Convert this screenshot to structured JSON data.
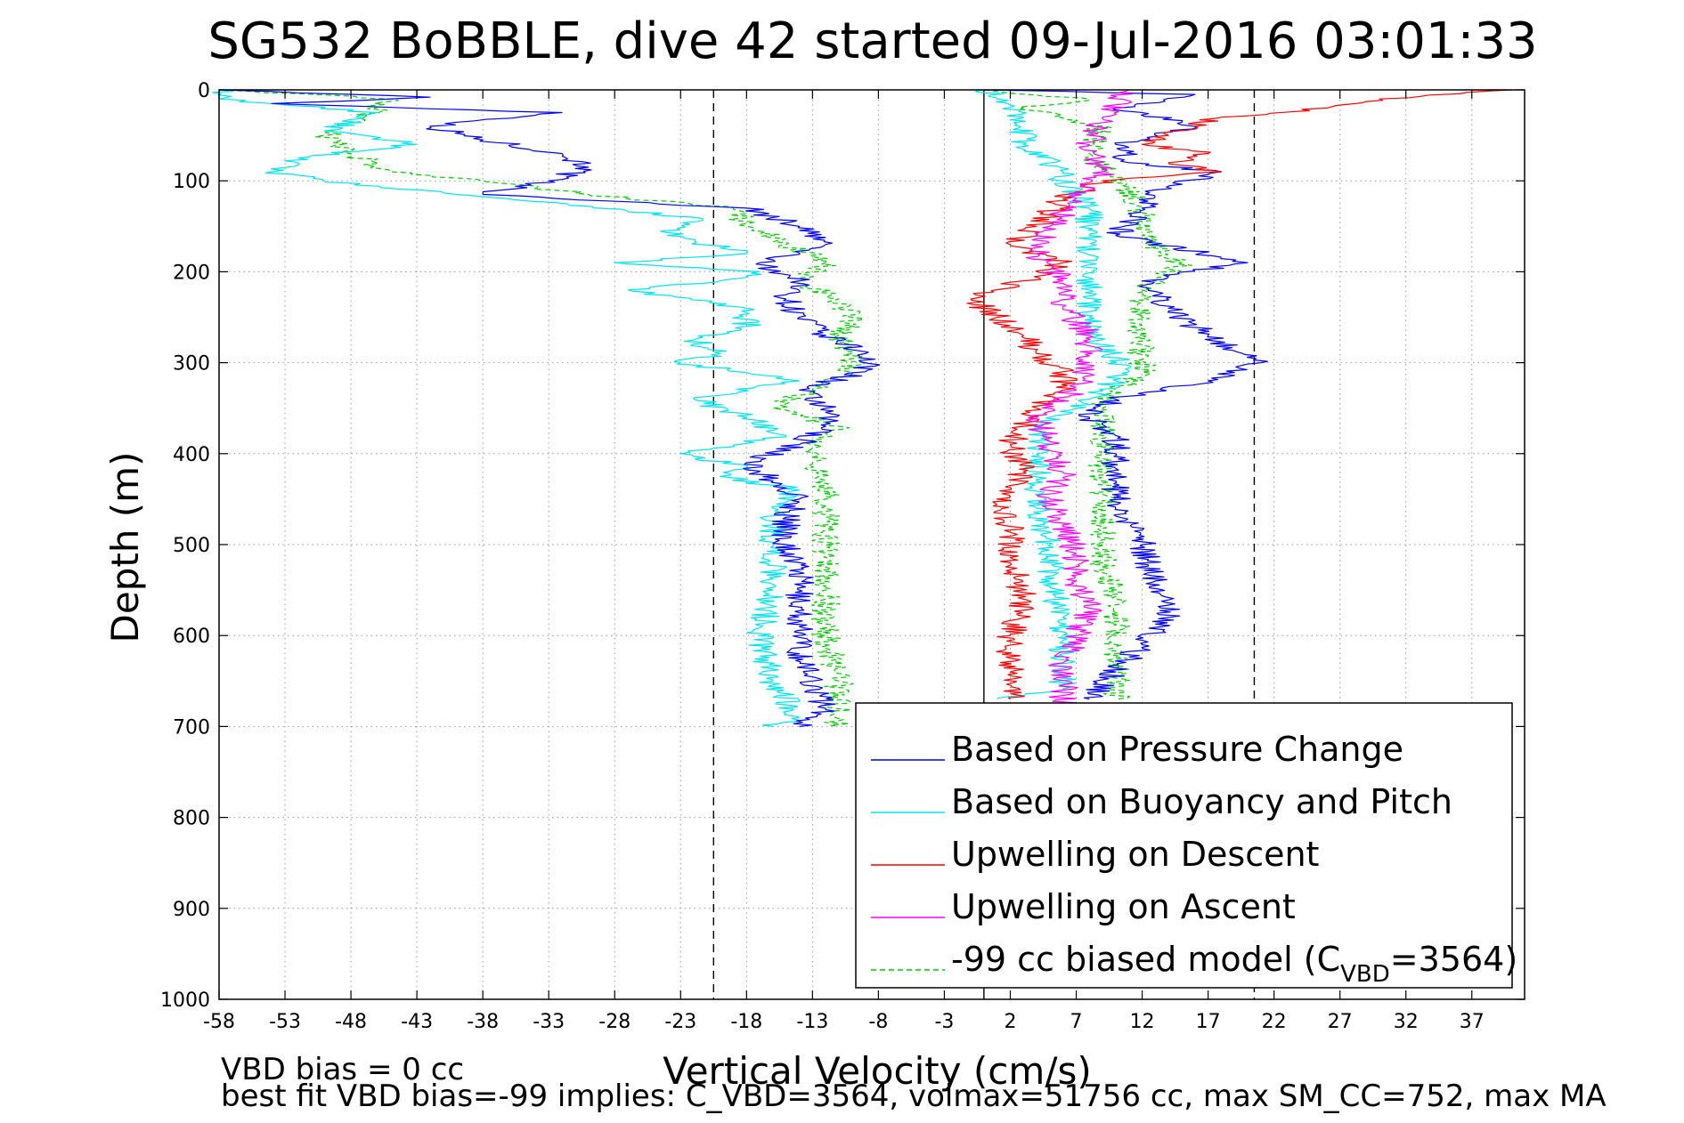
{
  "chart_data": {
    "type": "line",
    "title": "SG532 BoBBLE, dive 42 started 09-Jul-2016 03:01:33",
    "xlabel": "Vertical Velocity (cm/s)",
    "ylabel": "Depth (m)",
    "xlim": [
      -58,
      41
    ],
    "ylim": [
      0,
      1000
    ],
    "y_reversed": true,
    "grid": true,
    "legend_position": "bottom-right",
    "xticks": [
      -58,
      -53,
      -48,
      -43,
      -38,
      -33,
      -28,
      -23,
      -18,
      -13,
      -8,
      -3,
      2,
      7,
      12,
      17,
      22,
      27,
      32,
      37
    ],
    "yticks": [
      0,
      100,
      200,
      300,
      400,
      500,
      600,
      700,
      800,
      900,
      1000
    ],
    "reference_lines": [
      {
        "x": -20.5,
        "style": "dashed",
        "color": "#000000"
      },
      {
        "x": 0,
        "style": "solid",
        "color": "#000000"
      },
      {
        "x": 20.5,
        "style": "dashed",
        "color": "#000000"
      }
    ],
    "series": [
      {
        "name": "Based on Pressure Change",
        "color": "#0000ff",
        "dash": "solid",
        "y": [
          0,
          8,
          15,
          25,
          40,
          55,
          70,
          85,
          100,
          115,
          130,
          150,
          170,
          190,
          210,
          230,
          250,
          270,
          290,
          310,
          330,
          350,
          370,
          390,
          410,
          430,
          450,
          470,
          500,
          530,
          560,
          590,
          620,
          650,
          680,
          700
        ],
        "x": [
          -58,
          -42,
          -54,
          -32,
          -42,
          -38,
          -32,
          -30,
          -33,
          -38,
          -18,
          -14,
          -12,
          -17,
          -14,
          -15,
          -14,
          -12,
          -9,
          -9,
          -14,
          -12,
          -12,
          -14,
          -18,
          -16,
          -14,
          -15,
          -15,
          -14,
          -14,
          -14,
          -14,
          -13,
          -12,
          -14
        ]
      },
      {
        "name": "Based on Buoyancy and Pitch",
        "color": "#00e5ee",
        "dash": "solid",
        "y": [
          0,
          10,
          25,
          45,
          60,
          75,
          90,
          100,
          115,
          140,
          160,
          180,
          190,
          200,
          210,
          220,
          240,
          260,
          275,
          290,
          300,
          320,
          340,
          360,
          380,
          400,
          415,
          425,
          440,
          460,
          500,
          550,
          600,
          650,
          690,
          700
        ],
        "x": [
          -58,
          -58,
          -46,
          -50,
          -43,
          -52,
          -54,
          -50,
          -40,
          -22,
          -24,
          -18,
          -28,
          -17,
          -20,
          -27,
          -18,
          -18,
          -22,
          -20,
          -23,
          -14,
          -22,
          -18,
          -15,
          -23,
          -18,
          -20,
          -14,
          -16,
          -16,
          -16,
          -17,
          -16,
          -14,
          -16
        ]
      },
      {
        "name": "Upwelling on Descent",
        "color": "#ff0000",
        "dash": "solid",
        "y": [
          0,
          10,
          20,
          30,
          40,
          50,
          60,
          70,
          80,
          90,
          100,
          120,
          150,
          170,
          190,
          210,
          230,
          250,
          270,
          290,
          310,
          330,
          350,
          370,
          390,
          420,
          450,
          480,
          520,
          560,
          600,
          640,
          670
        ],
        "x": [
          40,
          30,
          26,
          18,
          16,
          14,
          12,
          17,
          14,
          18,
          9,
          6,
          4,
          2,
          6,
          3,
          -1,
          1,
          3,
          4,
          6,
          6,
          4,
          3,
          2,
          3,
          1,
          2,
          2,
          3,
          2,
          2,
          2
        ]
      },
      {
        "name": "Upwelling on Ascent",
        "color": "#ff00ff",
        "dash": "solid",
        "y": [
          0,
          30,
          60,
          90,
          120,
          150,
          180,
          210,
          240,
          270,
          300,
          330,
          360,
          390,
          420,
          450,
          480,
          510,
          540,
          570,
          600,
          630,
          660,
          680
        ],
        "x": [
          11,
          9,
          8,
          9,
          7,
          5,
          4,
          6,
          6,
          8,
          8,
          7,
          4,
          5,
          6,
          5,
          6,
          7,
          7,
          8,
          7,
          6,
          6,
          6
        ]
      },
      {
        "name": "-99 cc biased model (C_VBD=3564)",
        "color": "#00cc00",
        "dash": "dashed",
        "y": [
          0,
          10,
          30,
          50,
          70,
          90,
          100,
          115,
          130,
          150,
          170,
          190,
          210,
          230,
          250,
          270,
          290,
          310,
          330,
          350,
          370,
          390,
          410,
          430,
          450,
          470,
          500,
          550,
          600,
          650,
          700
        ],
        "x": [
          -58,
          -45,
          -47,
          -50,
          -48,
          -45,
          -38,
          -30,
          -19,
          -18,
          -15,
          -12,
          -14,
          -11,
          -10,
          -11,
          -10,
          -10,
          -13,
          -16,
          -11,
          -13,
          -13,
          -12,
          -12,
          -12,
          -12,
          -12,
          -12,
          -11,
          -11
        ]
      },
      {
        "name": "",
        "color": "#0000ff",
        "dash": "solid",
        "y": [
          0,
          5,
          20,
          40,
          60,
          80,
          90,
          110,
          130,
          160,
          190,
          210,
          240,
          270,
          300,
          320,
          340,
          360,
          380,
          400,
          430,
          460,
          500,
          540,
          580,
          610,
          640,
          670
        ],
        "x": [
          0,
          16,
          10,
          16,
          10,
          11,
          18,
          13,
          12,
          10,
          20,
          12,
          14,
          17,
          21,
          17,
          10,
          8,
          10,
          10,
          10,
          10,
          12,
          13,
          14,
          12,
          10,
          8
        ]
      },
      {
        "name": "",
        "color": "#00e5ee",
        "dash": "solid",
        "y": [
          0,
          10,
          30,
          60,
          90,
          100,
          130,
          160,
          190,
          220,
          250,
          280,
          310,
          340,
          370,
          400,
          430,
          460,
          500,
          540,
          580,
          620,
          660,
          670
        ],
        "x": [
          0,
          1,
          3,
          3,
          6,
          6,
          8,
          8,
          8,
          8,
          8,
          9,
          11,
          8,
          4,
          4,
          4,
          4,
          5,
          5,
          6,
          6,
          6,
          1
        ]
      },
      {
        "name": "",
        "color": "#00cc00",
        "dash": "dashed",
        "y": [
          0,
          10,
          20,
          40,
          70,
          100,
          130,
          160,
          190,
          220,
          250,
          280,
          310,
          330,
          350,
          380,
          410,
          440,
          480,
          520,
          560,
          600,
          640,
          670
        ],
        "x": [
          0,
          8,
          3,
          9,
          8,
          10,
          12,
          12,
          15,
          12,
          12,
          12,
          12,
          10,
          9,
          9,
          9,
          9,
          9,
          9,
          10,
          10,
          10,
          10
        ]
      }
    ]
  },
  "legend": [
    {
      "label": "Based on Pressure Change",
      "color": "#0000ff",
      "dash": "solid"
    },
    {
      "label": "Based on Buoyancy and Pitch",
      "color": "#00e5ee",
      "dash": "solid"
    },
    {
      "label": "Upwelling on Descent",
      "color": "#ff0000",
      "dash": "solid"
    },
    {
      "label": "Upwelling on Ascent",
      "color": "#ff00ff",
      "dash": "solid"
    },
    {
      "label_prefix": "-99 cc biased model (C",
      "label_sub": "VBD",
      "label_suffix": "=3564)",
      "color": "#00cc00",
      "dash": "dashed"
    }
  ],
  "notes": {
    "line1": "VBD bias = 0 cc",
    "line2": "best fit VBD bias=-99 implies: C_VBD=3564, volmax=51756 cc, max SM_CC=752, max MA"
  }
}
